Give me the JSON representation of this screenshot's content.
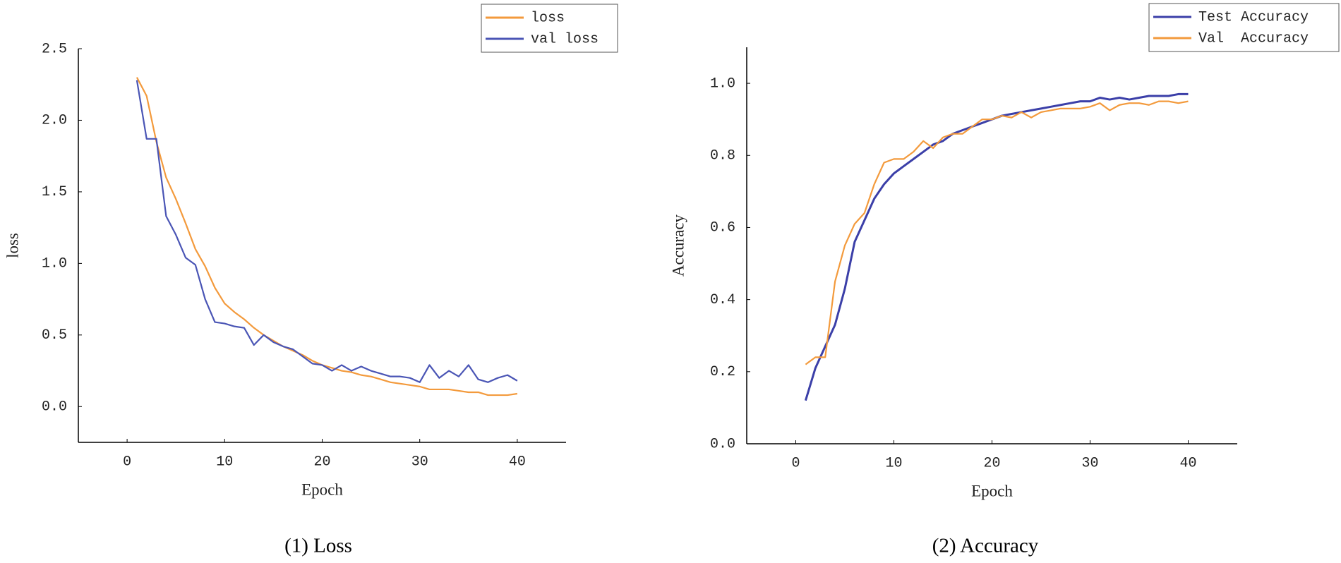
{
  "chart_data": [
    {
      "type": "line",
      "caption": "(1) Loss",
      "xlabel": "Epoch",
      "ylabel": "loss",
      "x": [
        1,
        2,
        3,
        4,
        5,
        6,
        7,
        8,
        9,
        10,
        11,
        12,
        13,
        14,
        15,
        16,
        17,
        18,
        19,
        20,
        21,
        22,
        23,
        24,
        25,
        26,
        27,
        28,
        29,
        30,
        31,
        32,
        33,
        34,
        35,
        36,
        37,
        38,
        39,
        40
      ],
      "series": [
        {
          "name": "loss",
          "color": "#f39a3c",
          "values": [
            2.3,
            2.17,
            1.85,
            1.6,
            1.45,
            1.28,
            1.1,
            0.98,
            0.83,
            0.72,
            0.66,
            0.61,
            0.55,
            0.5,
            0.46,
            0.42,
            0.39,
            0.36,
            0.32,
            0.29,
            0.27,
            0.25,
            0.24,
            0.22,
            0.21,
            0.19,
            0.17,
            0.16,
            0.15,
            0.14,
            0.12,
            0.12,
            0.12,
            0.11,
            0.1,
            0.1,
            0.08,
            0.08,
            0.08,
            0.09
          ]
        },
        {
          "name": "val loss",
          "color": "#4a55b5",
          "values": [
            2.28,
            1.87,
            1.87,
            1.33,
            1.2,
            1.04,
            0.99,
            0.75,
            0.59,
            0.58,
            0.56,
            0.55,
            0.43,
            0.5,
            0.45,
            0.42,
            0.4,
            0.35,
            0.3,
            0.29,
            0.25,
            0.29,
            0.25,
            0.28,
            0.25,
            0.23,
            0.21,
            0.21,
            0.2,
            0.17,
            0.29,
            0.2,
            0.25,
            0.21,
            0.29,
            0.19,
            0.17,
            0.2,
            0.22,
            0.18
          ]
        }
      ],
      "xlim": [
        -5,
        45
      ],
      "xticks": [
        0,
        10,
        20,
        30,
        40
      ],
      "ylim": [
        -0.25,
        2.5
      ],
      "yticks": [
        {
          "value": 0,
          "label": "0.0"
        },
        0.5,
        {
          "value": 1,
          "label": "1.0"
        },
        1.5,
        {
          "value": 2,
          "label": "2.0"
        },
        2.5
      ],
      "grid": false,
      "legend": "upper right"
    },
    {
      "type": "line",
      "caption": "(2) Accuracy",
      "xlabel": "Epoch",
      "ylabel": "Accuracy",
      "x": [
        1,
        2,
        3,
        4,
        5,
        6,
        7,
        8,
        9,
        10,
        11,
        12,
        13,
        14,
        15,
        16,
        17,
        18,
        19,
        20,
        21,
        22,
        23,
        24,
        25,
        26,
        27,
        28,
        29,
        30,
        31,
        32,
        33,
        34,
        35,
        36,
        37,
        38,
        39,
        40
      ],
      "series": [
        {
          "name": "Test Accuracy",
          "color": "#3b3fa8",
          "values": [
            0.12,
            0.21,
            0.27,
            0.33,
            0.43,
            0.56,
            0.62,
            0.68,
            0.72,
            0.75,
            0.77,
            0.79,
            0.81,
            0.83,
            0.84,
            0.86,
            0.87,
            0.88,
            0.89,
            0.9,
            0.91,
            0.915,
            0.92,
            0.925,
            0.93,
            0.935,
            0.94,
            0.945,
            0.95,
            0.95,
            0.96,
            0.955,
            0.96,
            0.955,
            0.96,
            0.965,
            0.965,
            0.965,
            0.97,
            0.97
          ]
        },
        {
          "name": "Val  Accuracy",
          "color": "#f39a3c",
          "values": [
            0.22,
            0.24,
            0.24,
            0.45,
            0.55,
            0.61,
            0.64,
            0.72,
            0.78,
            0.79,
            0.79,
            0.81,
            0.84,
            0.82,
            0.85,
            0.86,
            0.86,
            0.88,
            0.9,
            0.9,
            0.91,
            0.905,
            0.92,
            0.905,
            0.92,
            0.925,
            0.93,
            0.93,
            0.93,
            0.935,
            0.945,
            0.925,
            0.94,
            0.945,
            0.945,
            0.94,
            0.95,
            0.95,
            0.945,
            0.95
          ]
        }
      ],
      "xlim": [
        -5,
        45
      ],
      "xticks": [
        0,
        10,
        20,
        30,
        40
      ],
      "ylim": [
        0,
        1.1
      ],
      "yticks": [
        {
          "value": 0,
          "label": "0.0"
        },
        0.2,
        0.4,
        0.6,
        0.8,
        {
          "value": 1,
          "label": "1.0"
        }
      ],
      "grid": false,
      "legend": "upper right"
    }
  ]
}
